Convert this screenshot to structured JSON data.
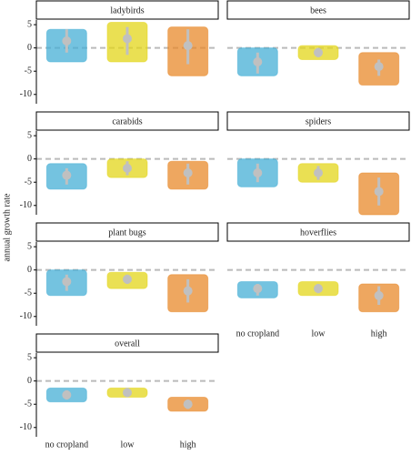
{
  "chart_data": {
    "type": "jitter",
    "y_label": "annual growth rate",
    "categories": [
      "no cropland",
      "low",
      "high"
    ],
    "colors": [
      "#45afd6",
      "#e3d51a",
      "#e88a2b"
    ],
    "point_color": "#c0c0c0",
    "reference_line": 0,
    "ylim": [
      -12,
      6
    ],
    "yticks": [
      5,
      0,
      -5,
      -10
    ],
    "facets": [
      {
        "title": "ladybirds",
        "mean": [
          1.5,
          2,
          0.5
        ],
        "lower": [
          -1,
          -1.5,
          -3.5
        ],
        "upper": [
          4,
          4.5,
          4
        ],
        "min": [
          -3,
          -3,
          -6
        ],
        "max": [
          4,
          5.5,
          4.5
        ]
      },
      {
        "title": "bees",
        "mean": [
          -3,
          -1,
          -4
        ],
        "lower": [
          -5.5,
          -2,
          -6
        ],
        "upper": [
          -1,
          0,
          -2.5
        ],
        "min": [
          -6,
          -2.5,
          -8
        ],
        "max": [
          0,
          0.5,
          -1
        ]
      },
      {
        "title": "carabids",
        "mean": [
          -3.5,
          -2,
          -3
        ],
        "lower": [
          -5.5,
          -3.5,
          -5.5
        ],
        "upper": [
          -2,
          -0.5,
          -1
        ],
        "min": [
          -6.5,
          -4,
          -6.5
        ],
        "max": [
          -1,
          0,
          -0.5
        ]
      },
      {
        "title": "spiders",
        "mean": [
          -3,
          -3,
          -7
        ],
        "lower": [
          -5,
          -4.5,
          -10
        ],
        "upper": [
          -1,
          -1.5,
          -4
        ],
        "min": [
          -6,
          -5,
          -12
        ],
        "max": [
          0,
          -1,
          -3
        ]
      },
      {
        "title": "plant bugs",
        "mean": [
          -2.5,
          -2,
          -4.5
        ],
        "lower": [
          -4.5,
          -3,
          -7
        ],
        "upper": [
          -1,
          -1,
          -2
        ],
        "min": [
          -5.5,
          -4,
          -9
        ],
        "max": [
          0,
          -0.5,
          -1
        ]
      },
      {
        "title": "hoverflies",
        "mean": [
          -4,
          -4,
          -5.5
        ],
        "lower": [
          -5.5,
          -5,
          -7.5
        ],
        "upper": [
          -3,
          -3,
          -3.5
        ],
        "min": [
          -6,
          -5.5,
          -9
        ],
        "max": [
          -2.5,
          -2.5,
          -3
        ]
      },
      {
        "title": "overall",
        "mean": [
          -3,
          -2.5,
          -5
        ],
        "lower": [
          -4,
          -3,
          -6
        ],
        "upper": [
          -2,
          -1.5,
          -4
        ],
        "min": [
          -4.5,
          -3.5,
          -6.5
        ],
        "max": [
          -1.5,
          -1.5,
          -3.5
        ]
      }
    ]
  }
}
